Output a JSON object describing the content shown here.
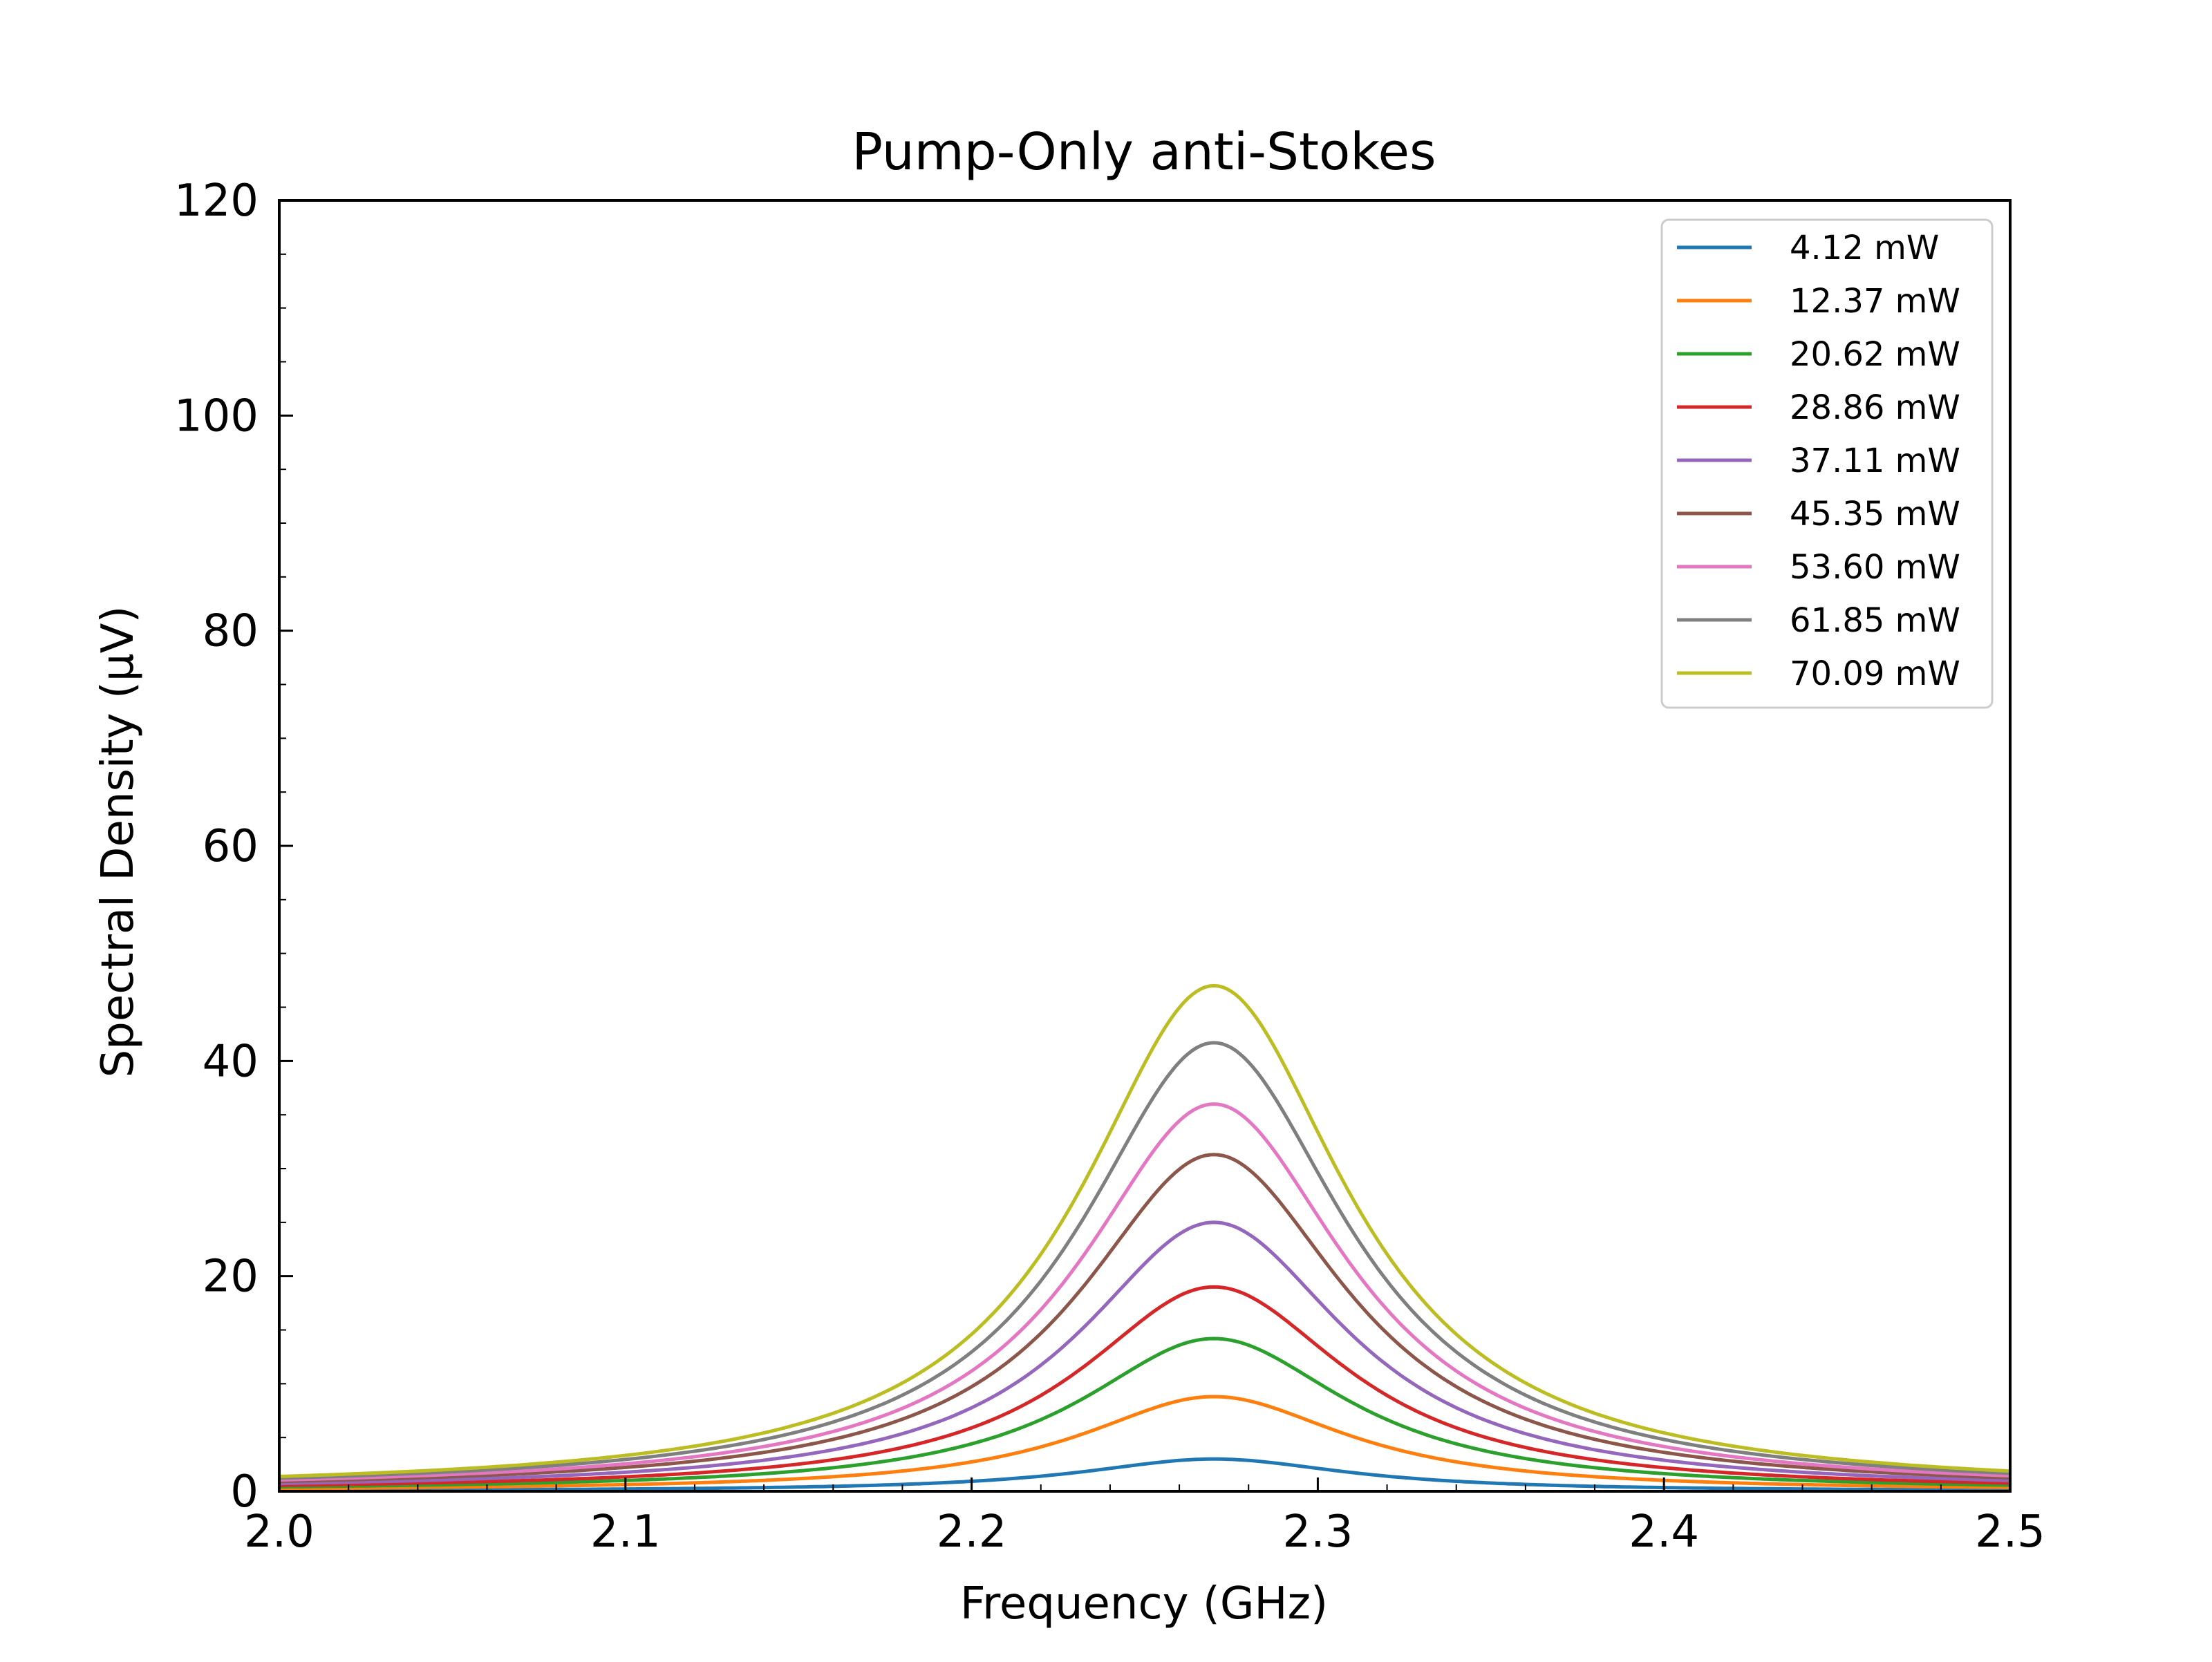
{
  "chart_data": {
    "type": "line",
    "title": "Pump-Only anti-Stokes",
    "xlabel": "Frequency (GHz)",
    "ylabel": "Spectral Density (μV)",
    "xlim": [
      2.0,
      2.5
    ],
    "ylim": [
      0,
      120
    ],
    "x_ticks": [
      "2.0",
      "2.1",
      "2.2",
      "2.3",
      "2.4",
      "2.5"
    ],
    "y_ticks": [
      "0",
      "20",
      "40",
      "60",
      "80",
      "100",
      "120"
    ],
    "grid": false,
    "legend_position": "top-right",
    "center_frequency": 2.27,
    "half_width": 0.047,
    "series": [
      {
        "name": "4.12 mW",
        "color": "#1f77b4",
        "peak": 3.0
      },
      {
        "name": "12.37 mW",
        "color": "#ff7f0e",
        "peak": 8.8
      },
      {
        "name": "20.62 mW",
        "color": "#2ca02c",
        "peak": 14.2
      },
      {
        "name": "28.86 mW",
        "color": "#d62728",
        "peak": 19.0
      },
      {
        "name": "37.11 mW",
        "color": "#9467bd",
        "peak": 25.0
      },
      {
        "name": "45.35 mW",
        "color": "#8c564b",
        "peak": 31.3
      },
      {
        "name": "53.60 mW",
        "color": "#e377c2",
        "peak": 36.0
      },
      {
        "name": "61.85 mW",
        "color": "#7f7f7f",
        "peak": 41.7
      },
      {
        "name": "70.09 mW",
        "color": "#bcbd22",
        "peak": 47.0
      }
    ]
  }
}
